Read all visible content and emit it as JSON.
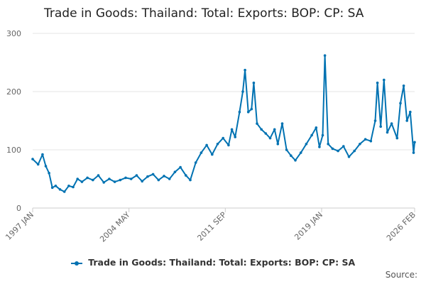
{
  "chart_data": {
    "type": "line",
    "title": "Trade in Goods: Thailand: Total: Exports: BOP: CP: SA",
    "xlabel": "",
    "ylabel": "",
    "ylim": [
      0,
      300
    ],
    "yticks": [
      "0",
      "100",
      "200",
      "300"
    ],
    "xticks": [
      "1997 JAN",
      "2004 MAY",
      "2011 SEP",
      "2019 JAN",
      "2026 FEB"
    ],
    "grid": true,
    "legend_position": "bottom",
    "series": [
      {
        "name": "Trade in Goods: Thailand: Total: Exports: BOP: CP: SA",
        "color": "#0072b2",
        "points": [
          [
            "1997-01",
            84
          ],
          [
            "1997-06",
            75
          ],
          [
            "1997-10",
            92
          ],
          [
            "1998-01",
            72
          ],
          [
            "1998-04",
            60
          ],
          [
            "1998-07",
            35
          ],
          [
            "1998-10",
            38
          ],
          [
            "1999-02",
            32
          ],
          [
            "1999-06",
            28
          ],
          [
            "1999-10",
            38
          ],
          [
            "2000-02",
            36
          ],
          [
            "2000-06",
            50
          ],
          [
            "2000-10",
            45
          ],
          [
            "2001-03",
            52
          ],
          [
            "2001-08",
            48
          ],
          [
            "2002-01",
            56
          ],
          [
            "2002-06",
            44
          ],
          [
            "2002-11",
            50
          ],
          [
            "2003-04",
            45
          ],
          [
            "2003-09",
            48
          ],
          [
            "2004-02",
            52
          ],
          [
            "2004-07",
            50
          ],
          [
            "2004-12",
            56
          ],
          [
            "2005-05",
            46
          ],
          [
            "2005-10",
            54
          ],
          [
            "2006-03",
            58
          ],
          [
            "2006-08",
            48
          ],
          [
            "2007-01",
            55
          ],
          [
            "2007-06",
            50
          ],
          [
            "2007-11",
            62
          ],
          [
            "2008-04",
            70
          ],
          [
            "2008-09",
            56
          ],
          [
            "2009-01",
            48
          ],
          [
            "2009-06",
            78
          ],
          [
            "2009-11",
            95
          ],
          [
            "2010-04",
            108
          ],
          [
            "2010-09",
            92
          ],
          [
            "2011-02",
            110
          ],
          [
            "2011-07",
            120
          ],
          [
            "2011-12",
            108
          ],
          [
            "2012-03",
            135
          ],
          [
            "2012-06",
            122
          ],
          [
            "2012-10",
            165
          ],
          [
            "2013-01",
            200
          ],
          [
            "2013-03",
            237
          ],
          [
            "2013-06",
            165
          ],
          [
            "2013-09",
            170
          ],
          [
            "2013-11",
            215
          ],
          [
            "2014-02",
            145
          ],
          [
            "2014-06",
            135
          ],
          [
            "2014-10",
            128
          ],
          [
            "2015-02",
            120
          ],
          [
            "2015-06",
            135
          ],
          [
            "2015-09",
            110
          ],
          [
            "2016-01",
            145
          ],
          [
            "2016-05",
            100
          ],
          [
            "2016-09",
            90
          ],
          [
            "2017-01",
            82
          ],
          [
            "2017-06",
            95
          ],
          [
            "2017-11",
            110
          ],
          [
            "2018-04",
            125
          ],
          [
            "2018-08",
            138
          ],
          [
            "2018-11",
            105
          ],
          [
            "2019-02",
            125
          ],
          [
            "2019-04",
            262
          ],
          [
            "2019-07",
            110
          ],
          [
            "2019-11",
            102
          ],
          [
            "2020-04",
            98
          ],
          [
            "2020-09",
            106
          ],
          [
            "2021-02",
            88
          ],
          [
            "2021-07",
            98
          ],
          [
            "2021-12",
            110
          ],
          [
            "2022-05",
            118
          ],
          [
            "2022-10",
            115
          ],
          [
            "2023-02",
            150
          ],
          [
            "2023-04",
            215
          ],
          [
            "2023-07",
            140
          ],
          [
            "2023-10",
            220
          ],
          [
            "2024-01",
            130
          ],
          [
            "2024-05",
            145
          ],
          [
            "2024-10",
            120
          ],
          [
            "2025-01",
            180
          ],
          [
            "2025-04",
            210
          ],
          [
            "2025-07",
            150
          ],
          [
            "2025-10",
            165
          ],
          [
            "2026-01",
            95
          ],
          [
            "2026-02",
            113
          ]
        ]
      }
    ]
  },
  "source_label": "Source:"
}
